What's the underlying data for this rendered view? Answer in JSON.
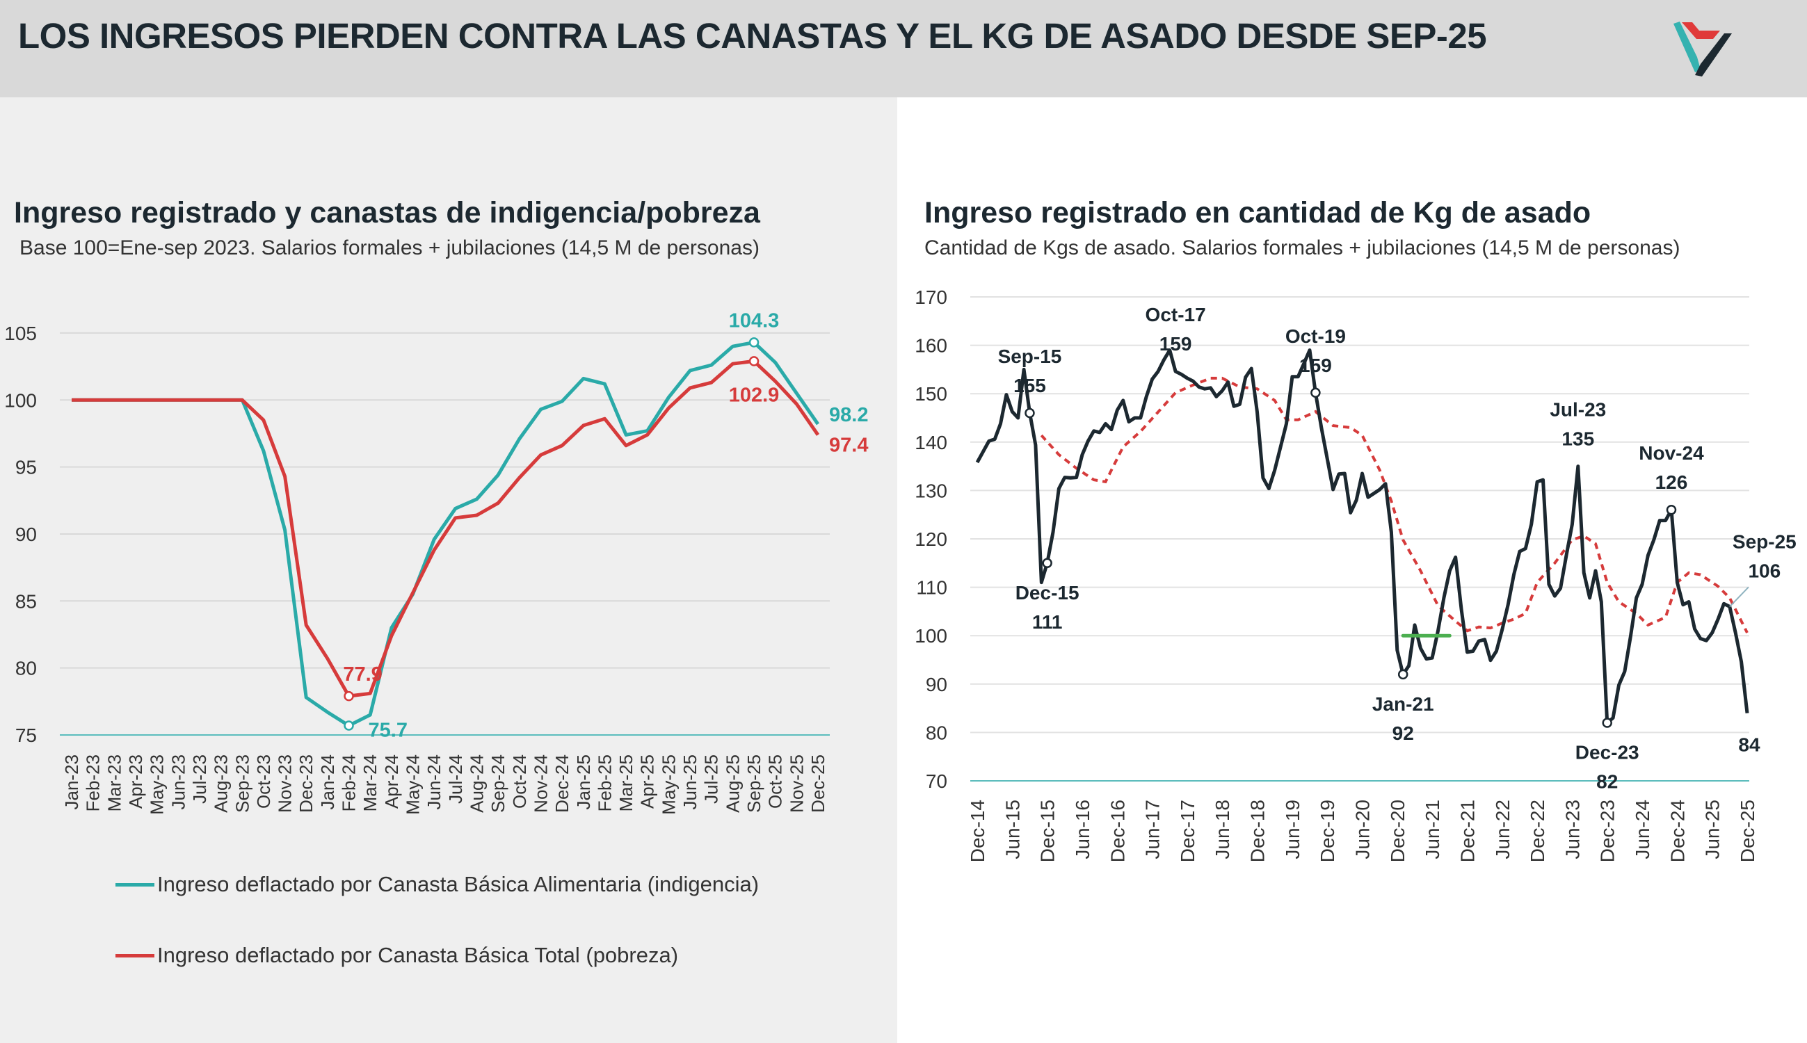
{
  "header": {
    "title": "LOS INGRESOS PIERDEN CONTRA LAS CANASTAS Y EL KG DE ASADO DESDE SEP-25",
    "logo_icon": "triangle-v-logo"
  },
  "colors": {
    "teal": "#2aaaa8",
    "red": "#d63b3b",
    "dark": "#1c2830",
    "green": "#4caf50",
    "grid": "#d9d9d9"
  },
  "left": {
    "title": "Ingreso registrado y canastas de indigencia/pobreza",
    "subtitle": "Base 100=Ene-sep 2023. Salarios formales + jubilaciones (14,5 M de personas)",
    "legend": [
      "Ingreso deflactado por Canasta Básica Alimentaria (indigencia)",
      "Ingreso deflactado por Canasta Básica Total (pobreza)"
    ]
  },
  "right": {
    "title": "Ingreso registrado en cantidad de Kg de asado",
    "subtitle": "Cantidad de Kgs de asado. Salarios formales + jubilaciones (14,5 M de personas)"
  },
  "chart_data": [
    {
      "type": "line",
      "ylim": [
        75,
        105
      ],
      "yticks": [
        "75",
        "80",
        "85",
        "90",
        "95",
        "100",
        "105"
      ],
      "grid": true,
      "legend_position": "bottom",
      "categories": [
        "Jan-23",
        "Feb-23",
        "Mar-23",
        "Apr-23",
        "May-23",
        "Jun-23",
        "Jul-23",
        "Aug-23",
        "Sep-23",
        "Oct-23",
        "Nov-23",
        "Dec-23",
        "Jan-24",
        "Feb-24",
        "Mar-24",
        "Apr-24",
        "May-24",
        "Jun-24",
        "Jul-24",
        "Aug-24",
        "Sep-24",
        "Oct-24",
        "Nov-24",
        "Dec-24",
        "Jan-25",
        "Feb-25",
        "Mar-25",
        "Apr-25",
        "May-25",
        "Jun-25",
        "Jul-25",
        "Aug-25",
        "Sep-25",
        "Oct-25",
        "Nov-25",
        "Dec-25"
      ],
      "series": [
        {
          "name": "Ingreso deflactado por Canasta Básica Alimentaria (indigencia)",
          "color": "#2aaaa8",
          "values": [
            100,
            100,
            100,
            100,
            100,
            100,
            100,
            100,
            100,
            96.2,
            90.3,
            77.8,
            76.7,
            75.7,
            76.5,
            83,
            85.5,
            89.6,
            91.9,
            92.6,
            94.4,
            97.1,
            99.3,
            99.9,
            101.6,
            101.2,
            97.4,
            97.7,
            100.2,
            102.2,
            102.6,
            104.0,
            104.3,
            102.8,
            100.5,
            98.2
          ]
        },
        {
          "name": "Ingreso deflactado por Canasta Básica Total (pobreza)",
          "color": "#d63b3b",
          "values": [
            100,
            100,
            100,
            100,
            100,
            100,
            100,
            100,
            100,
            98.5,
            94.3,
            83.2,
            80.7,
            77.9,
            78.1,
            82.4,
            85.6,
            88.8,
            91.2,
            91.4,
            92.3,
            94.2,
            95.9,
            96.6,
            98.1,
            98.6,
            96.6,
            97.4,
            99.4,
            100.9,
            101.3,
            102.7,
            102.9,
            101.4,
            99.7,
            97.4
          ]
        }
      ],
      "annotations": [
        {
          "series": 0,
          "x": "Sep-25",
          "text": "104.3",
          "pos": "above",
          "marker": true
        },
        {
          "series": 1,
          "x": "Sep-25",
          "text": "102.9",
          "pos": "below",
          "marker": true
        },
        {
          "series": 0,
          "x": "Dec-25",
          "text": "98.2",
          "pos": "right-up",
          "marker": false
        },
        {
          "series": 1,
          "x": "Dec-25",
          "text": "97.4",
          "pos": "right-down",
          "marker": false
        },
        {
          "series": 1,
          "x": "Feb-24",
          "text": "77.9",
          "pos": "above",
          "marker": true
        },
        {
          "series": 0,
          "x": "Feb-24",
          "text": "75.7",
          "pos": "right-down",
          "marker": true
        }
      ]
    },
    {
      "type": "line",
      "ylim": [
        70,
        170
      ],
      "yticks": [
        "70",
        "80",
        "90",
        "100",
        "110",
        "120",
        "130",
        "140",
        "150",
        "160",
        "170"
      ],
      "grid": true,
      "xticks": [
        "Dec-14",
        "Jun-15",
        "Dec-15",
        "Jun-16",
        "Dec-16",
        "Jun-17",
        "Dec-17",
        "Jun-18",
        "Dec-18",
        "Jun-19",
        "Dec-19",
        "Jun-20",
        "Dec-20",
        "Jun-21",
        "Dec-21",
        "Jun-22",
        "Dec-22",
        "Jun-23",
        "Dec-23",
        "Jun-24",
        "Dec-24",
        "Jun-25",
        "Dec-25"
      ],
      "x": [
        "Dec-14",
        "Jan-15",
        "Feb-15",
        "Mar-15",
        "Apr-15",
        "May-15",
        "Jun-15",
        "Jul-15",
        "Aug-15",
        "Sep-15",
        "Oct-15",
        "Nov-15",
        "Dec-15",
        "Jan-16",
        "Feb-16",
        "Mar-16",
        "Apr-16",
        "May-16",
        "Jun-16",
        "Jul-16",
        "Aug-16",
        "Sep-16",
        "Oct-16",
        "Nov-16",
        "Dec-16",
        "Jan-17",
        "Feb-17",
        "Mar-17",
        "Apr-17",
        "May-17",
        "Jun-17",
        "Jul-17",
        "Aug-17",
        "Sep-17",
        "Oct-17",
        "Nov-17",
        "Dec-17",
        "Jan-18",
        "Feb-18",
        "Mar-18",
        "Apr-18",
        "May-18",
        "Jun-18",
        "Jul-18",
        "Aug-18",
        "Sep-18",
        "Oct-18",
        "Nov-18",
        "Dec-18",
        "Jan-19",
        "Feb-19",
        "Mar-19",
        "Apr-19",
        "May-19",
        "Jun-19",
        "Jul-19",
        "Aug-19",
        "Sep-19",
        "Oct-19",
        "Nov-19",
        "Dec-19",
        "Jan-20",
        "Feb-20",
        "Mar-20",
        "Apr-20",
        "May-20",
        "Jun-20",
        "Jul-20",
        "Aug-20",
        "Sep-20",
        "Oct-20",
        "Nov-20",
        "Dec-20",
        "Jan-21",
        "Feb-21",
        "Mar-21",
        "Apr-21",
        "May-21",
        "Jun-21",
        "Jul-21",
        "Aug-21",
        "Sep-21",
        "Oct-21",
        "Nov-21",
        "Dec-21",
        "Jan-22",
        "Feb-22",
        "Mar-22",
        "Apr-22",
        "May-22",
        "Jun-22",
        "Jul-22",
        "Aug-22",
        "Sep-22",
        "Oct-22",
        "Nov-22",
        "Dec-22",
        "Jan-23",
        "Feb-23",
        "Mar-23",
        "Apr-23",
        "May-23",
        "Jun-23",
        "Jul-23",
        "Aug-23",
        "Sep-23",
        "Oct-23",
        "Nov-23",
        "Dec-23",
        "Jan-24",
        "Feb-24",
        "Mar-24",
        "Apr-24",
        "May-24",
        "Jun-24",
        "Jul-24",
        "Aug-24",
        "Sep-24",
        "Oct-24",
        "Nov-24",
        "Dec-24",
        "Jan-25",
        "Feb-25",
        "Mar-25",
        "Apr-25",
        "May-25",
        "Jun-25",
        "Jul-25",
        "Aug-25",
        "Sep-25",
        "Oct-25",
        "Nov-25",
        "Dec-25"
      ],
      "series": [
        {
          "color": "#1c2830",
          "style": "solid",
          "values": [
            135.8,
            138,
            140.2,
            140.6,
            143.8,
            149.8,
            146.3,
            145,
            155,
            146,
            139.4,
            111,
            115,
            121.4,
            130.4,
            132.7,
            132.6,
            132.7,
            137.4,
            140.2,
            142.3,
            142,
            143.8,
            142.6,
            146.6,
            148.6,
            144.2,
            145,
            145,
            149.4,
            153,
            154.6,
            157,
            159,
            154.6,
            154,
            153.2,
            152.6,
            151.4,
            151,
            151.2,
            149.4,
            150.6,
            152.4,
            147.4,
            147.8,
            153.4,
            155.2,
            146.2,
            132.6,
            130.4,
            134.2,
            139,
            143.8,
            153.5,
            153.5,
            156.2,
            159,
            150.2,
            143,
            136.6,
            130.2,
            133.4,
            133.5,
            125.4,
            128,
            133.5,
            128.6,
            129.4,
            130.2,
            131.4,
            121.4,
            97,
            92,
            93.8,
            102.2,
            97.4,
            95.2,
            95.4,
            101,
            107.8,
            113.4,
            116.2,
            105.4,
            96.6,
            96.8,
            98.9,
            99.2,
            94.9,
            96.8,
            101.3,
            106.4,
            112.6,
            117.4,
            118,
            123,
            131.8,
            132.2,
            110.6,
            108.2,
            109.8,
            116.6,
            123,
            135,
            113,
            107.8,
            113.4,
            107,
            82,
            83,
            89.8,
            92.6,
            99.8,
            107.8,
            110.6,
            116.6,
            119.8,
            123.8,
            123.8,
            126,
            111,
            106.4,
            107,
            101.4,
            99.4,
            99,
            100.6,
            103.4,
            106.6,
            106,
            100.6,
            94.6,
            84
          ]
        },
        {
          "color": "#d63b3b",
          "style": "dashed",
          "points": [
            [
              "Nov-15",
              141.4
            ],
            [
              "Feb-16",
              137.4
            ],
            [
              "May-16",
              134.6
            ],
            [
              "Aug-16",
              132.2
            ],
            [
              "Oct-16",
              131.8
            ],
            [
              "Jan-17",
              139
            ],
            [
              "Apr-17",
              142.2
            ],
            [
              "Jul-17",
              146.2
            ],
            [
              "Oct-17",
              150.2
            ],
            [
              "Jan-18",
              151.8
            ],
            [
              "Apr-18",
              153.2
            ],
            [
              "Jun-18",
              153.2
            ],
            [
              "Sep-18",
              151.4
            ],
            [
              "Dec-18",
              151
            ],
            [
              "Mar-19",
              148.6
            ],
            [
              "May-19",
              144.6
            ],
            [
              "Jul-19",
              144.6
            ],
            [
              "Oct-19",
              146.3
            ],
            [
              "Jan-20",
              143.4
            ],
            [
              "Apr-20",
              143
            ],
            [
              "Jun-20",
              141.4
            ],
            [
              "Sep-20",
              134.2
            ],
            [
              "Nov-20",
              127.8
            ],
            [
              "Jan-21",
              119.8
            ],
            [
              "Apr-21",
              113.4
            ],
            [
              "Jul-21",
              106.2
            ],
            [
              "Oct-21",
              103
            ],
            [
              "Dec-21",
              101
            ],
            [
              "Feb-22",
              101.8
            ],
            [
              "Apr-22",
              101.6
            ],
            [
              "Jun-22",
              102.6
            ],
            [
              "Aug-22",
              103.4
            ],
            [
              "Oct-22",
              104.6
            ],
            [
              "Dec-22",
              111
            ],
            [
              "Mar-23",
              115
            ],
            [
              "Jun-23",
              119.8
            ],
            [
              "Aug-23",
              120.6
            ],
            [
              "Oct-23",
              119
            ],
            [
              "Dec-23",
              111
            ],
            [
              "Feb-24",
              107
            ],
            [
              "May-24",
              104.6
            ],
            [
              "Jul-24",
              102.2
            ],
            [
              "Oct-24",
              103.8
            ],
            [
              "Dec-24",
              111
            ],
            [
              "Feb-25",
              113
            ],
            [
              "Apr-25",
              112.6
            ],
            [
              "Jul-25",
              110.2
            ],
            [
              "Sep-25",
              107.8
            ],
            [
              "Dec-25",
              100.6
            ]
          ]
        },
        {
          "color": "#4caf50",
          "style": "segment",
          "points": [
            [
              "Jan-21",
              100
            ],
            [
              "Sep-21",
              100
            ]
          ]
        }
      ],
      "annotations": [
        {
          "x": "Sep-15",
          "label": "Sep-15",
          "text": "155",
          "pos": "above",
          "marker": true
        },
        {
          "x": "Dec-15",
          "label": "Dec-15",
          "text": "111",
          "pos": "below",
          "marker": true
        },
        {
          "x": "Oct-17",
          "label": "Oct-17",
          "text": "159",
          "pos": "above",
          "marker": false
        },
        {
          "x": "Oct-19",
          "label": "Oct-19",
          "text": "159",
          "pos": "above",
          "marker": true
        },
        {
          "x": "Jan-21",
          "label": "Jan-21",
          "text": "92",
          "pos": "below",
          "marker": true
        },
        {
          "x": "Jul-23",
          "label": "Jul-23",
          "text": "135",
          "pos": "above",
          "marker": false
        },
        {
          "x": "Dec-23",
          "label": "Dec-23",
          "text": "82",
          "pos": "below",
          "marker": true
        },
        {
          "x": "Nov-24",
          "label": "Nov-24",
          "text": "126",
          "pos": "above",
          "marker": true
        },
        {
          "x": "Sep-25",
          "label": "Sep-25",
          "text": "106",
          "pos": "leader",
          "marker": false
        },
        {
          "x": "Dec-25",
          "label": "",
          "text": "84",
          "pos": "below-value",
          "marker": false
        }
      ]
    }
  ]
}
